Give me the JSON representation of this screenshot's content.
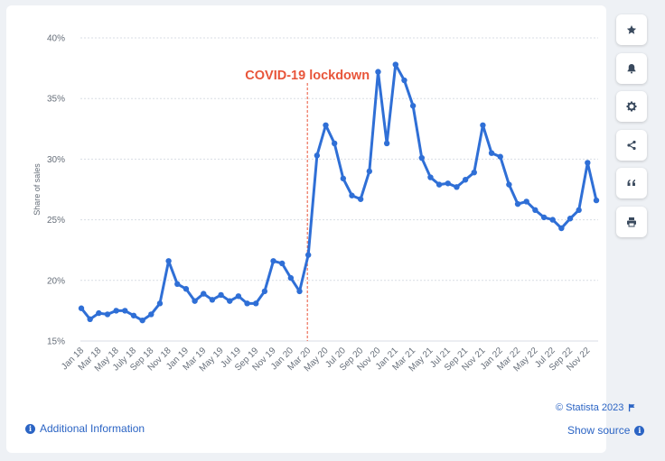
{
  "chart_data": {
    "type": "line",
    "ylabel": "Share of sales",
    "y_unit": "%",
    "ylim": [
      15,
      40
    ],
    "y_ticks": [
      15,
      20,
      25,
      30,
      35,
      40
    ],
    "y_tick_labels": [
      "15%",
      "20%",
      "25%",
      "30%",
      "35%",
      "40%"
    ],
    "grid": "horizontal dashed",
    "line_color": "#2f6fd6",
    "x_months": [
      "Jan 18",
      "Feb 18",
      "Mar 18",
      "Apr 18",
      "May 18",
      "Jun 18",
      "Jul 18",
      "Aug 18",
      "Sep 18",
      "Oct 18",
      "Nov 18",
      "Dec 18",
      "Jan 19",
      "Feb 19",
      "Mar 19",
      "Apr 19",
      "May 19",
      "Jun 19",
      "Jul 19",
      "Aug 19",
      "Sep 19",
      "Oct 19",
      "Nov 19",
      "Dec 19",
      "Jan 20",
      "Feb 20",
      "Mar 20",
      "Apr 20",
      "May 20",
      "Jun 20",
      "Jul 20",
      "Aug 20",
      "Sep 20",
      "Oct 20",
      "Nov 20",
      "Dec 20",
      "Jan 21",
      "Feb 21",
      "Mar 21",
      "Apr 21",
      "May 21",
      "Jun 21",
      "Jul 21",
      "Aug 21",
      "Sep 21",
      "Oct 21",
      "Nov 21",
      "Dec 21",
      "Jan 22",
      "Feb 22",
      "Mar 22",
      "Apr 22",
      "May 22",
      "Jun 22",
      "Jul 22",
      "Aug 22",
      "Sep 22",
      "Oct 22",
      "Nov 22",
      "Dec 22"
    ],
    "x_tick_labels": [
      "Jan 18",
      "Mar 18",
      "May 18",
      "July 18",
      "Sep 18",
      "Nov 18",
      "Jan 19",
      "Mar 19",
      "May 19",
      "Jul 19",
      "Sep 19",
      "Nov 19",
      "Jan 20",
      "Mar 20",
      "May 20",
      "Jul 20",
      "Sep 20",
      "Nov 20",
      "Jan 21",
      "Mar 21",
      "May 21",
      "Jul 21",
      "Sep 21",
      "Nov 21",
      "Jan 22",
      "Mar 22",
      "May 22",
      "Jul 22",
      "Sep 22",
      "Nov 22"
    ],
    "series": [
      {
        "values": [
          17.7,
          16.8,
          17.3,
          17.2,
          17.5,
          17.5,
          17.1,
          16.7,
          17.2,
          18.1,
          21.6,
          19.7,
          19.3,
          18.3,
          18.9,
          18.4,
          18.8,
          18.3,
          18.7,
          18.1,
          18.1,
          19.1,
          21.6,
          21.4,
          20.2,
          19.1,
          22.1,
          30.3,
          32.8,
          31.3,
          28.4,
          27.0,
          26.7,
          29.0,
          37.2,
          31.3,
          37.8,
          36.5,
          34.4,
          30.1,
          28.5,
          27.9,
          28.0,
          27.7,
          28.3,
          28.9,
          32.8,
          30.5,
          30.2,
          27.9,
          26.3,
          26.5,
          25.8,
          25.2,
          25.0,
          24.3,
          25.1,
          25.8,
          29.7,
          26.6
        ]
      }
    ],
    "annotations": [
      {
        "text": "COVID-19 lockdown",
        "x": "Mar 20",
        "color": "#e8553a",
        "style": "dashed vertical line"
      }
    ]
  },
  "toolbar": {
    "buttons": [
      {
        "name": "favorite-button",
        "icon": "star-icon"
      },
      {
        "name": "notification-button",
        "icon": "bell-icon"
      },
      {
        "name": "settings-button",
        "icon": "gear-icon"
      },
      {
        "name": "share-button",
        "icon": "share-icon"
      },
      {
        "name": "cite-button",
        "icon": "quote-icon"
      },
      {
        "name": "print-button",
        "icon": "printer-icon"
      }
    ],
    "icon_color": "#3a4a5e"
  },
  "footer": {
    "additional_info": "Additional Information",
    "copyright": "© Statista 2023",
    "show_source": "Show source"
  },
  "colors": {
    "accent": "#2b64c4",
    "background": "#eef1f5",
    "card": "#ffffff"
  }
}
